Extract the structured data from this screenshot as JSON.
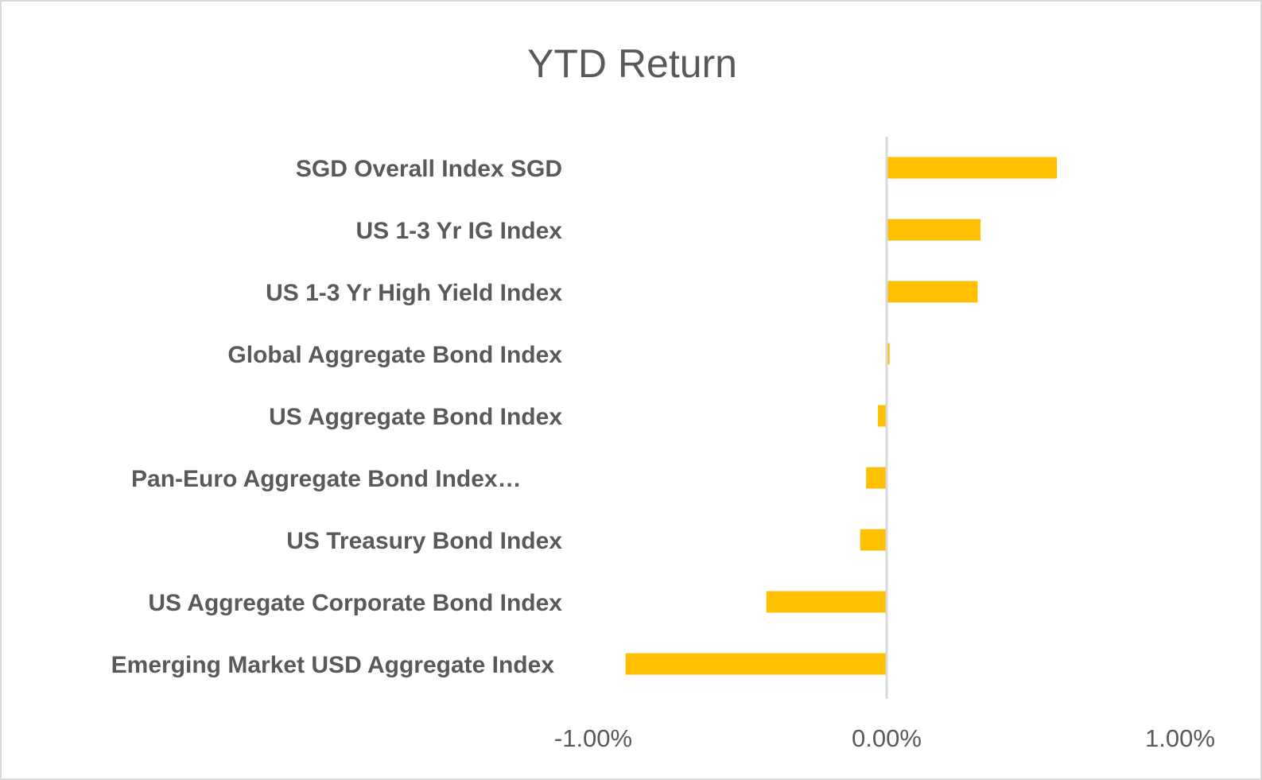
{
  "chart_data": {
    "type": "bar",
    "orientation": "horizontal",
    "title": "YTD Return",
    "categories": [
      "SGD Overall Index SGD",
      "US 1-3 Yr IG Index",
      "US 1-3 Yr High Yield Index",
      "Global Aggregate Bond Index",
      "US Aggregate Bond Index",
      "Pan-Euro Aggregate Bond Index…",
      "US Treasury Bond Index",
      "US Aggregate Corporate Bond Index",
      "Emerging Market USD Aggregate Index"
    ],
    "values": [
      0.58,
      0.32,
      0.31,
      0.01,
      -0.03,
      -0.07,
      -0.09,
      -0.41,
      -0.89
    ],
    "unit": "%",
    "xlim": [
      -1,
      1
    ],
    "tick_labels": [
      "-1.00%",
      "0.00%",
      "1.00%"
    ],
    "tick_values": [
      -1,
      0,
      1
    ],
    "grid": false,
    "legend": "none",
    "bar_color": "#FFC000",
    "axis_color": "#D9D9D9",
    "text_color": "#595959"
  }
}
